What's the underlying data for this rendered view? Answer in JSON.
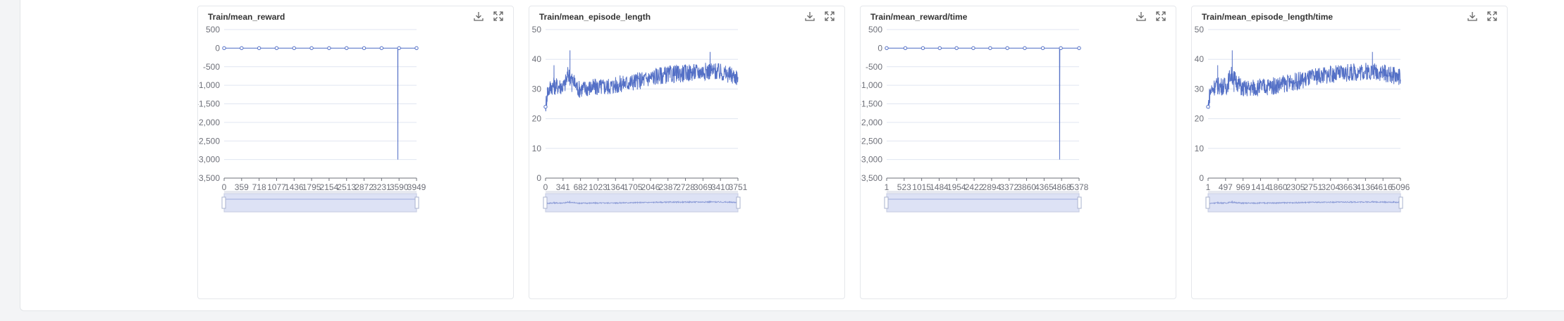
{
  "colors": {
    "series": "#5470c6",
    "grid": "#e0e6f1",
    "axis": "#6e7079"
  },
  "charts": [
    {
      "title": "Train/mean_reward",
      "download_icon": "download-icon",
      "fullscreen_icon": "fullscreen-icon"
    },
    {
      "title": "Train/mean_episode_length",
      "download_icon": "download-icon",
      "fullscreen_icon": "fullscreen-icon"
    },
    {
      "title": "Train/mean_reward/time",
      "download_icon": "download-icon",
      "fullscreen_icon": "fullscreen-icon"
    },
    {
      "title": "Train/mean_episode_length/time",
      "download_icon": "download-icon",
      "fullscreen_icon": "fullscreen-icon"
    }
  ],
  "chart_data": [
    {
      "type": "line",
      "title": "Train/mean_reward",
      "xlim": [
        0,
        3949
      ],
      "ylim": [
        -3500,
        500
      ],
      "x_ticks": [
        "0",
        "359",
        "718",
        "1077",
        "1436",
        "1795",
        "2154",
        "2513",
        "2872",
        "3231",
        "3590",
        "3949"
      ],
      "y_ticks": [
        "500",
        "0",
        "-500",
        "-1,000",
        "-1,500",
        "-2,000",
        "-2,500",
        "-3,000",
        "-3,500"
      ],
      "series": [
        {
          "values": [
            [
              0,
              0
            ],
            [
              359,
              0
            ],
            [
              718,
              0
            ],
            [
              1077,
              0
            ],
            [
              1436,
              0
            ],
            [
              1795,
              0
            ],
            [
              2154,
              0
            ],
            [
              2513,
              0
            ],
            [
              2872,
              0
            ],
            [
              3231,
              0
            ],
            [
              3540,
              0
            ],
            [
              3563,
              0
            ],
            [
              3565,
              -3000
            ],
            [
              3567,
              0
            ],
            [
              3590,
              0
            ],
            [
              3949,
              0
            ]
          ],
          "markers": [
            0,
            359,
            718,
            1077,
            1436,
            1795,
            2154,
            2513,
            2872,
            3231,
            3590,
            3949
          ]
        }
      ]
    },
    {
      "type": "line",
      "title": "Train/mean_episode_length",
      "xlim": [
        0,
        4092
      ],
      "ylim": [
        0,
        50
      ],
      "x_ticks": [
        "0",
        "341",
        "682",
        "1023",
        "1364",
        "1705",
        "2046",
        "2387",
        "2728",
        "3069",
        "3410",
        "3751"
      ],
      "y_ticks": [
        "50",
        "40",
        "30",
        "20",
        "10",
        "0"
      ],
      "series": [
        {
          "values": [
            [
              0,
              24
            ],
            [
              40,
              29
            ],
            [
              120,
              31
            ],
            [
              180,
              38
            ],
            [
              230,
              30
            ],
            [
              400,
              31
            ],
            [
              480,
              35
            ],
            [
              520,
              43
            ],
            [
              560,
              29
            ],
            [
              700,
              30
            ],
            [
              1000,
              30.5
            ],
            [
              1400,
              31
            ],
            [
              1705,
              32
            ],
            [
              2046,
              33
            ],
            [
              2387,
              34.5
            ],
            [
              2728,
              35
            ],
            [
              3069,
              35.5
            ],
            [
              3410,
              36
            ],
            [
              3500,
              42.5
            ],
            [
              3600,
              36
            ],
            [
              4092,
              34
            ]
          ],
          "noise": 3,
          "markers": [
            0
          ]
        }
      ]
    },
    {
      "type": "line",
      "title": "Train/mean_reward/time",
      "xlim": [
        1,
        5378
      ],
      "ylim": [
        -3500,
        500
      ],
      "x_ticks": [
        "1",
        "523",
        "1015",
        "1484",
        "1954",
        "2422",
        "2894",
        "3372",
        "3860",
        "4365",
        "4868",
        "5378"
      ],
      "y_ticks": [
        "500",
        "0",
        "-500",
        "-1,000",
        "-1,500",
        "-2,000",
        "-2,500",
        "-3,000",
        "-3,500"
      ],
      "series": [
        {
          "values": [
            [
              1,
              0
            ],
            [
              4830,
              0
            ],
            [
              4835,
              -3000
            ],
            [
              4840,
              0
            ],
            [
              5378,
              0
            ]
          ],
          "markers": [
            1,
            523,
            1015,
            1484,
            1954,
            2422,
            2894,
            3372,
            3860,
            4365,
            4868,
            5378
          ]
        }
      ]
    },
    {
      "type": "line",
      "title": "Train/mean_episode_length/time",
      "xlim": [
        1,
        5560
      ],
      "ylim": [
        0,
        50
      ],
      "x_ticks": [
        "1",
        "497",
        "969",
        "1414",
        "1860",
        "2305",
        "2751",
        "3204",
        "3663",
        "4136",
        "4616",
        "5096"
      ],
      "y_ticks": [
        "50",
        "40",
        "30",
        "20",
        "10",
        "0"
      ],
      "series": [
        {
          "values": [
            [
              1,
              24
            ],
            [
              60,
              29
            ],
            [
              200,
              31
            ],
            [
              280,
              38
            ],
            [
              330,
              30
            ],
            [
              550,
              31
            ],
            [
              650,
              35
            ],
            [
              700,
              43
            ],
            [
              750,
              29
            ],
            [
              1000,
              30
            ],
            [
              1414,
              30.5
            ],
            [
              1860,
              31
            ],
            [
              2305,
              32
            ],
            [
              2751,
              33
            ],
            [
              3204,
              34.5
            ],
            [
              3663,
              35
            ],
            [
              4136,
              35.5
            ],
            [
              4616,
              36
            ],
            [
              4750,
              42.5
            ],
            [
              4850,
              36
            ],
            [
              5560,
              34
            ]
          ],
          "noise": 3,
          "markers": [
            1
          ]
        }
      ]
    }
  ]
}
